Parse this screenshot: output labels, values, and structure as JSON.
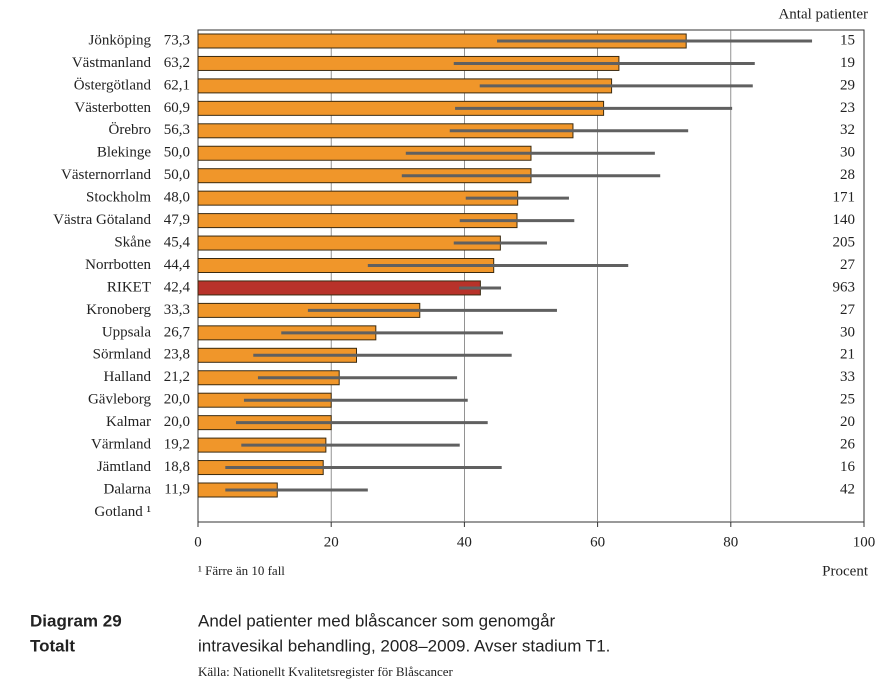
{
  "chart_data": {
    "type": "bar",
    "orientation": "horizontal",
    "categories": [
      "Jönköping",
      "Västmanland",
      "Östergötland",
      "Västerbotten",
      "Örebro",
      "Blekinge",
      "Västernorrland",
      "Stockholm",
      "Västra Götaland",
      "Skåne",
      "Norrbotten",
      "RIKET",
      "Kronoberg",
      "Uppsala",
      "Sörmland",
      "Halland",
      "Gävleborg",
      "Kalmar",
      "Värmland",
      "Jämtland",
      "Dalarna",
      "Gotland ¹"
    ],
    "values": [
      73.3,
      63.2,
      62.1,
      60.9,
      56.3,
      50.0,
      50.0,
      48.0,
      47.9,
      45.4,
      44.4,
      42.4,
      33.3,
      26.7,
      23.8,
      21.2,
      20.0,
      20.0,
      19.2,
      18.8,
      11.9,
      null
    ],
    "value_labels": [
      "73,3",
      "63,2",
      "62,1",
      "60,9",
      "56,3",
      "50,0",
      "50,0",
      "48,0",
      "47,9",
      "45,4",
      "44,4",
      "42,4",
      "33,3",
      "26,7",
      "23,8",
      "21,2",
      "20,0",
      "20,0",
      "19,2",
      "18,8",
      "11,9",
      null
    ],
    "ci_low": [
      44.9,
      38.4,
      42.3,
      38.6,
      37.8,
      31.2,
      30.6,
      40.2,
      39.3,
      38.4,
      25.5,
      39.2,
      16.5,
      12.5,
      8.3,
      9.0,
      6.9,
      5.7,
      6.5,
      4.1,
      4.1,
      null
    ],
    "ci_high": [
      92.2,
      83.6,
      83.3,
      80.2,
      73.6,
      68.6,
      69.4,
      55.7,
      56.5,
      52.4,
      64.6,
      45.5,
      53.9,
      45.8,
      47.1,
      38.9,
      40.5,
      43.5,
      39.3,
      45.6,
      25.5,
      null
    ],
    "colors": [
      "#f0962a",
      "#f0962a",
      "#f0962a",
      "#f0962a",
      "#f0962a",
      "#f0962a",
      "#f0962a",
      "#f0962a",
      "#f0962a",
      "#f0962a",
      "#f0962a",
      "#b8322a",
      "#f0962a",
      "#f0962a",
      "#f0962a",
      "#f0962a",
      "#f0962a",
      "#f0962a",
      "#f0962a",
      "#f0962a",
      "#f0962a",
      "#f0962a"
    ],
    "error_color": "#606060",
    "patients_title": "Antal patienter",
    "patients": [
      "15",
      "19",
      "29",
      "23",
      "32",
      "30",
      "28",
      "171",
      "140",
      "205",
      "27",
      "963",
      "27",
      "30",
      "21",
      "33",
      "25",
      "20",
      "26",
      "16",
      "42",
      null
    ],
    "xlim": [
      0,
      100
    ],
    "xticks": [
      0,
      20,
      40,
      60,
      80,
      100
    ],
    "grid": true,
    "xlabel": "Procent",
    "footnote": "¹ Färre än 10 fall",
    "caption_label": "Diagram 29",
    "caption_sublabel": "Totalt",
    "caption": [
      "Andel patienter med blåscancer som genomgår",
      "intravesikal behandling, 2008–2009. Avser stadium T1."
    ],
    "source": "Källa: Nationellt Kvalitetsregister för Blåscancer"
  }
}
